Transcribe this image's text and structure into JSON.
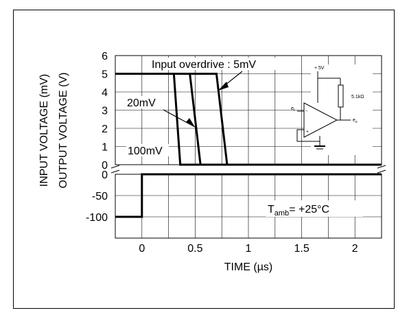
{
  "chart_data": {
    "type": "line",
    "x_unit_label": "TIME (µs)",
    "x_ticks": [
      "0",
      "0.5",
      "1",
      "1.5",
      "2"
    ],
    "x_range": [
      -0.25,
      2.25
    ],
    "top_panel": {
      "ylabel": "OUTPUT VOLTAGE (V)",
      "y_ticks": [
        "6",
        "5",
        "4",
        "3",
        "2",
        "1",
        "0"
      ],
      "ylim": [
        0,
        6
      ],
      "series": [
        {
          "name": "Input overdrive : 5mV",
          "x": [
            -0.25,
            0.7,
            0.8,
            2.25
          ],
          "y": [
            5,
            5,
            0,
            0
          ]
        },
        {
          "name": "20mV",
          "x": [
            -0.25,
            0.45,
            0.55,
            2.25
          ],
          "y": [
            5,
            5,
            0,
            0
          ]
        },
        {
          "name": "100mV",
          "x": [
            -0.25,
            0.3,
            0.36,
            2.25
          ],
          "y": [
            5,
            5,
            0,
            0
          ]
        }
      ]
    },
    "bottom_panel": {
      "ylabel": "INPUT VOLTAGE (mV)",
      "y_ticks": [
        "0",
        "-50",
        "-100"
      ],
      "ylim": [
        -150,
        0
      ],
      "series": [
        {
          "x": [
            -0.25,
            0,
            0,
            2.25
          ],
          "y": [
            -100,
            -100,
            0,
            0
          ]
        }
      ]
    },
    "annotations": {
      "overdrive_5": "Input overdrive : 5mV",
      "overdrive_20": "20mV",
      "overdrive_100": "100mV",
      "temp_main": "T",
      "temp_sub": "amb",
      "temp_value": "= +25°C"
    },
    "schematic": {
      "supply": "+ 5V",
      "resistor": "5.1kΩ",
      "input_main": "e",
      "input_sub": "I",
      "output_main": "e",
      "output_sub": "o",
      "minus": "-",
      "plus": "+"
    },
    "grid": true
  }
}
